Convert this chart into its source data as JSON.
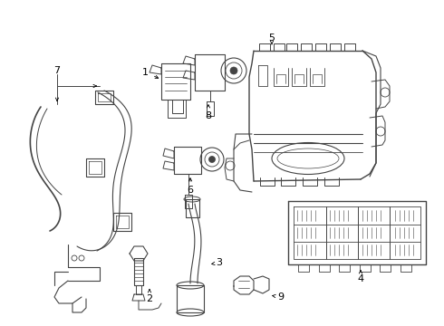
{
  "bg_color": "#ffffff",
  "line_color": "#444444",
  "lw": 0.7,
  "figsize": [
    4.9,
    3.6
  ],
  "dpi": 100,
  "xlim": [
    0,
    490
  ],
  "ylim": [
    0,
    360
  ]
}
